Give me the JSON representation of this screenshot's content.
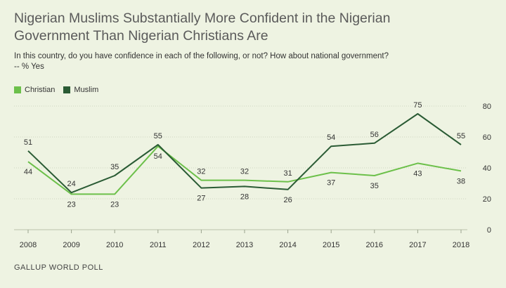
{
  "title_line1": "Nigerian Muslims Substantially More Confident in the Nigerian",
  "title_line2": "Government Than Nigerian Christians Are",
  "subtitle_line1": "In this country, do you have confidence in each of the following, or not? How about national government?",
  "subtitle_line2": "-- % Yes",
  "source": "GALLUP WORLD POLL",
  "colors": {
    "christian": "#6cc04a",
    "muslim": "#2a5b34",
    "grid": "#cdd5c0",
    "text": "#333333"
  },
  "chart_data": {
    "type": "line",
    "x": [
      "2008",
      "2009",
      "2010",
      "2011",
      "2012",
      "2013",
      "2014",
      "2015",
      "2016",
      "2017",
      "2018"
    ],
    "ylim": [
      0,
      80
    ],
    "yticks": [
      0,
      20,
      40,
      60,
      80
    ],
    "grid": true,
    "legend_position": "top-left",
    "series": [
      {
        "name": "Christian",
        "values": [
          44,
          23,
          23,
          54,
          32,
          32,
          31,
          37,
          35,
          43,
          38
        ]
      },
      {
        "name": "Muslim",
        "values": [
          51,
          24,
          35,
          55,
          27,
          28,
          26,
          54,
          56,
          75,
          55
        ]
      }
    ]
  }
}
